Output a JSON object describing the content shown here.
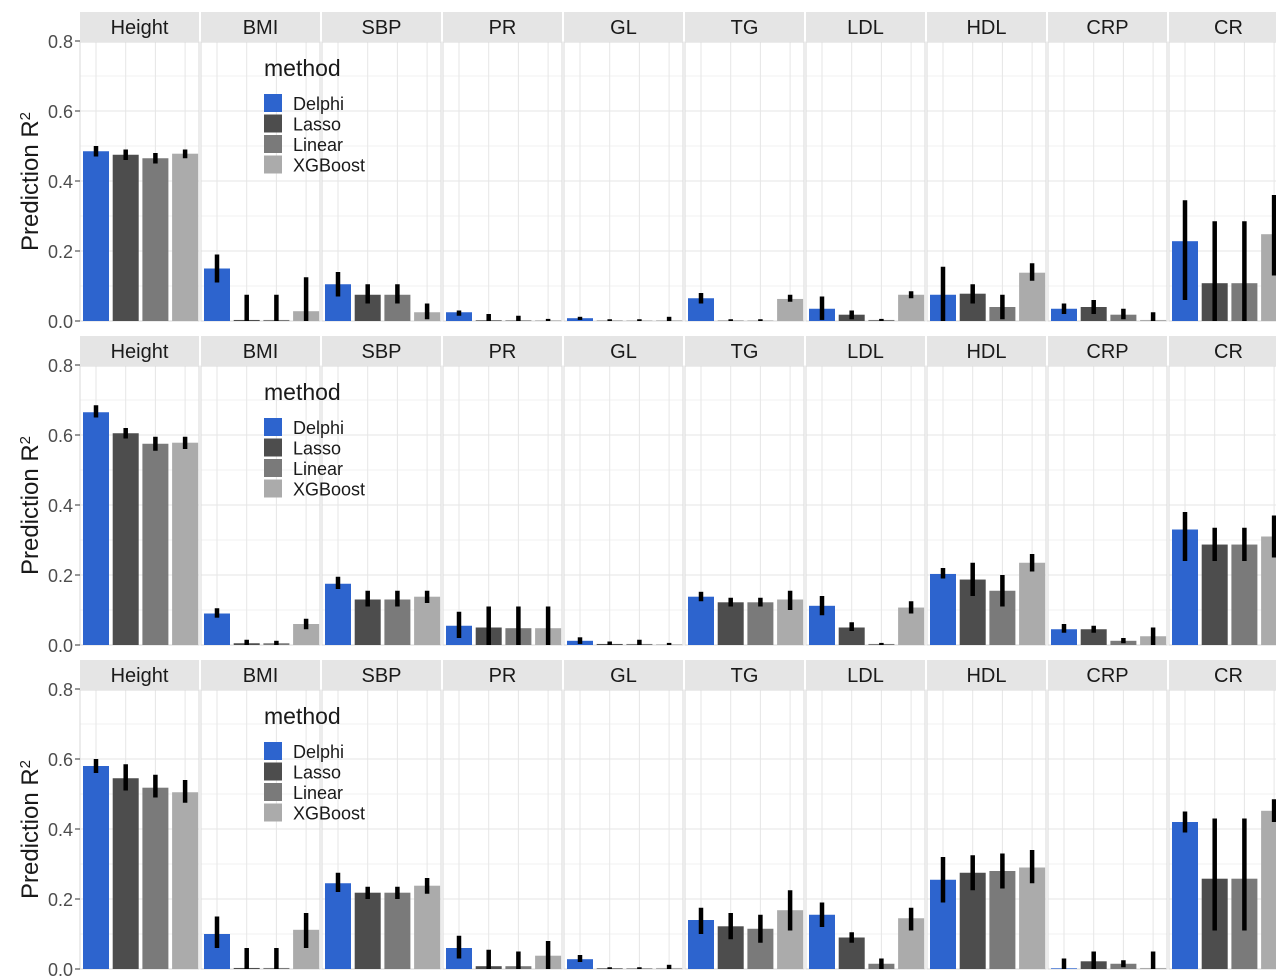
{
  "colors": {
    "Delphi": "#2D64CE",
    "Lasso": "#4D4D4D",
    "Linear": "#7A7A7A",
    "XGBoost": "#ABABAB",
    "strip_bg": "#E5E5E5",
    "grid": "#E6E6E6",
    "error_bar": "#000000"
  },
  "chart_data": {
    "type": "bar",
    "facet_layout": "3 rows x 10 columns",
    "ylabel": "Prediction  R²",
    "ylim": [
      0,
      0.8
    ],
    "yticks": [
      "0.0",
      "0.2",
      "0.4",
      "0.6",
      "0.8"
    ],
    "grid": true,
    "error_bars": true,
    "panels": [
      "Height",
      "BMI",
      "SBP",
      "PR",
      "GL",
      "TG",
      "LDL",
      "HDL",
      "CRP",
      "CR"
    ],
    "legend": {
      "title": "method",
      "placement": "inside, in the BMI panel of each row",
      "items": [
        "Delphi",
        "Lasso",
        "Linear",
        "XGBoost"
      ]
    },
    "rows": [
      {
        "series": [
          {
            "name": "Delphi",
            "values": [
              0.485,
              0.15,
              0.105,
              0.025,
              0.008,
              0.065,
              0.035,
              0.075,
              0.035,
              0.228
            ],
            "error": [
              [
                0.47,
                0.5
              ],
              [
                0.11,
                0.19
              ],
              [
                0.07,
                0.14
              ],
              [
                0.015,
                0.03
              ],
              [
                0.003,
                0.012
              ],
              [
                0.05,
                0.08
              ],
              [
                0.003,
                0.07
              ],
              [
                0.0,
                0.155
              ],
              [
                0.02,
                0.05
              ],
              [
                0.06,
                0.345
              ]
            ]
          },
          {
            "name": "Lasso",
            "values": [
              0.475,
              0.003,
              0.075,
              0.002,
              0.001,
              0.001,
              0.018,
              0.078,
              0.04,
              0.108
            ],
            "error": [
              [
                0.46,
                0.49
              ],
              [
                0.0,
                0.075
              ],
              [
                0.05,
                0.105
              ],
              [
                0.0,
                0.02
              ],
              [
                0.0,
                0.005
              ],
              [
                0.0,
                0.005
              ],
              [
                0.005,
                0.03
              ],
              [
                0.05,
                0.105
              ],
              [
                0.02,
                0.06
              ],
              [
                0.0,
                0.285
              ]
            ]
          },
          {
            "name": "Linear",
            "values": [
              0.465,
              0.003,
              0.075,
              0.002,
              0.001,
              0.001,
              0.003,
              0.04,
              0.018,
              0.108
            ],
            "error": [
              [
                0.45,
                0.48
              ],
              [
                0.0,
                0.075
              ],
              [
                0.05,
                0.105
              ],
              [
                0.0,
                0.015
              ],
              [
                0.0,
                0.005
              ],
              [
                0.0,
                0.005
              ],
              [
                0.0,
                0.006
              ],
              [
                0.005,
                0.075
              ],
              [
                0.005,
                0.035
              ],
              [
                0.0,
                0.285
              ]
            ]
          },
          {
            "name": "XGBoost",
            "values": [
              0.478,
              0.028,
              0.025,
              0.002,
              0.002,
              0.063,
              0.075,
              0.138,
              0.003,
              0.248
            ],
            "error": [
              [
                0.465,
                0.49
              ],
              [
                0.0,
                0.125
              ],
              [
                0.005,
                0.05
              ],
              [
                0.0,
                0.006
              ],
              [
                0.0,
                0.012
              ],
              [
                0.055,
                0.075
              ],
              [
                0.065,
                0.085
              ],
              [
                0.115,
                0.165
              ],
              [
                0.0,
                0.025
              ],
              [
                0.13,
                0.36
              ]
            ]
          }
        ]
      },
      {
        "series": [
          {
            "name": "Delphi",
            "values": [
              0.665,
              0.09,
              0.175,
              0.055,
              0.012,
              0.138,
              0.112,
              0.203,
              0.045,
              0.33
            ],
            "error": [
              [
                0.65,
                0.685
              ],
              [
                0.078,
                0.105
              ],
              [
                0.16,
                0.195
              ],
              [
                0.02,
                0.095
              ],
              [
                0.003,
                0.022
              ],
              [
                0.125,
                0.152
              ],
              [
                0.085,
                0.14
              ],
              [
                0.19,
                0.22
              ],
              [
                0.035,
                0.06
              ],
              [
                0.24,
                0.38
              ]
            ]
          },
          {
            "name": "Lasso",
            "values": [
              0.605,
              0.005,
              0.13,
              0.05,
              0.003,
              0.122,
              0.05,
              0.187,
              0.045,
              0.287
            ],
            "error": [
              [
                0.59,
                0.62
              ],
              [
                0.0,
                0.015
              ],
              [
                0.11,
                0.155
              ],
              [
                0.0,
                0.11
              ],
              [
                0.0,
                0.01
              ],
              [
                0.11,
                0.135
              ],
              [
                0.04,
                0.065
              ],
              [
                0.14,
                0.235
              ],
              [
                0.035,
                0.055
              ],
              [
                0.24,
                0.335
              ]
            ]
          },
          {
            "name": "Linear",
            "values": [
              0.575,
              0.005,
              0.13,
              0.048,
              0.003,
              0.122,
              0.003,
              0.155,
              0.012,
              0.287
            ],
            "error": [
              [
                0.555,
                0.595
              ],
              [
                0.0,
                0.012
              ],
              [
                0.11,
                0.155
              ],
              [
                0.0,
                0.11
              ],
              [
                0.0,
                0.015
              ],
              [
                0.11,
                0.135
              ],
              [
                0.0,
                0.006
              ],
              [
                0.11,
                0.2
              ],
              [
                0.005,
                0.02
              ],
              [
                0.24,
                0.335
              ]
            ]
          },
          {
            "name": "XGBoost",
            "values": [
              0.578,
              0.06,
              0.138,
              0.048,
              0.002,
              0.13,
              0.107,
              0.235,
              0.025,
              0.31
            ],
            "error": [
              [
                0.56,
                0.595
              ],
              [
                0.045,
                0.075
              ],
              [
                0.12,
                0.155
              ],
              [
                0.0,
                0.11
              ],
              [
                0.0,
                0.006
              ],
              [
                0.1,
                0.155
              ],
              [
                0.09,
                0.125
              ],
              [
                0.21,
                0.26
              ],
              [
                0.0,
                0.05
              ],
              [
                0.25,
                0.37
              ]
            ]
          }
        ]
      },
      {
        "series": [
          {
            "name": "Delphi",
            "values": [
              0.58,
              0.1,
              0.245,
              0.06,
              0.028,
              0.14,
              0.155,
              0.255,
              0.002,
              0.42
            ],
            "error": [
              [
                0.56,
                0.6
              ],
              [
                0.06,
                0.15
              ],
              [
                0.22,
                0.275
              ],
              [
                0.03,
                0.095
              ],
              [
                0.02,
                0.04
              ],
              [
                0.1,
                0.175
              ],
              [
                0.12,
                0.19
              ],
              [
                0.19,
                0.32
              ],
              [
                0.0,
                0.03
              ],
              [
                0.39,
                0.45
              ]
            ]
          },
          {
            "name": "Lasso",
            "values": [
              0.545,
              0.003,
              0.218,
              0.008,
              0.002,
              0.122,
              0.09,
              0.275,
              0.022,
              0.258
            ],
            "error": [
              [
                0.51,
                0.585
              ],
              [
                0.0,
                0.06
              ],
              [
                0.2,
                0.235
              ],
              [
                0.0,
                0.055
              ],
              [
                0.0,
                0.005
              ],
              [
                0.085,
                0.16
              ],
              [
                0.075,
                0.105
              ],
              [
                0.225,
                0.325
              ],
              [
                0.0,
                0.05
              ],
              [
                0.11,
                0.43
              ]
            ]
          },
          {
            "name": "Linear",
            "values": [
              0.518,
              0.003,
              0.218,
              0.008,
              0.002,
              0.115,
              0.015,
              0.28,
              0.015,
              0.258
            ],
            "error": [
              [
                0.49,
                0.555
              ],
              [
                0.0,
                0.06
              ],
              [
                0.2,
                0.235
              ],
              [
                0.0,
                0.05
              ],
              [
                0.0,
                0.005
              ],
              [
                0.075,
                0.155
              ],
              [
                0.0,
                0.03
              ],
              [
                0.23,
                0.33
              ],
              [
                0.005,
                0.025
              ],
              [
                0.11,
                0.43
              ]
            ]
          },
          {
            "name": "XGBoost",
            "values": [
              0.505,
              0.112,
              0.238,
              0.038,
              0.003,
              0.168,
              0.145,
              0.29,
              0.003,
              0.452
            ],
            "error": [
              [
                0.475,
                0.54
              ],
              [
                0.06,
                0.16
              ],
              [
                0.215,
                0.26
              ],
              [
                0.0,
                0.08
              ],
              [
                0.0,
                0.012
              ],
              [
                0.11,
                0.225
              ],
              [
                0.11,
                0.175
              ],
              [
                0.245,
                0.34
              ],
              [
                0.0,
                0.05
              ],
              [
                0.42,
                0.485
              ]
            ]
          }
        ]
      }
    ]
  }
}
